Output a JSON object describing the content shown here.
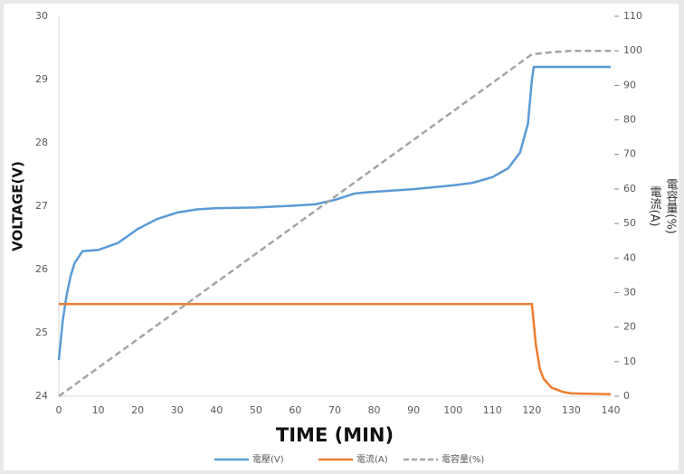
{
  "chart_data": {
    "type": "line",
    "xlabel": "TIME (MIN)",
    "ylabel": "VOLTAGE(V)",
    "y2label": [
      "電流(A)",
      "電容量(%)"
    ],
    "xlim": [
      0,
      140
    ],
    "xticks": [
      0,
      10,
      20,
      30,
      40,
      50,
      60,
      70,
      80,
      90,
      100,
      110,
      120,
      130,
      140
    ],
    "ylim": [
      24,
      30
    ],
    "yticks": [
      24,
      25,
      26,
      27,
      28,
      29,
      30
    ],
    "y2lim": [
      0,
      110
    ],
    "y2ticks": [
      0,
      10,
      20,
      30,
      40,
      50,
      60,
      70,
      80,
      90,
      100,
      110
    ],
    "series": [
      {
        "name": "電壓(V)",
        "color": "#5b9bd5",
        "dashed": false,
        "x": [
          0,
          1,
          2,
          3,
          4,
          6,
          10,
          15,
          20,
          25,
          30,
          35,
          40,
          50,
          60,
          65,
          70,
          75,
          78,
          90,
          100,
          105,
          110,
          114,
          117,
          119,
          120,
          120.5,
          140
        ],
        "values": [
          24.57,
          25.2,
          25.6,
          25.9,
          26.1,
          26.29,
          26.31,
          26.42,
          26.64,
          26.8,
          26.9,
          26.95,
          26.97,
          26.98,
          27.01,
          27.03,
          27.1,
          27.2,
          27.22,
          27.27,
          27.33,
          27.37,
          27.46,
          27.6,
          27.85,
          28.3,
          29.0,
          29.2,
          29.2
        ]
      },
      {
        "name": "電流(A)",
        "color": "#ed7d31",
        "dashed": false,
        "axis": "y2",
        "x": [
          0,
          120,
          121,
          122,
          123,
          125,
          128,
          130,
          140
        ],
        "values": [
          26.7,
          26.7,
          15,
          8,
          5,
          2.5,
          1.2,
          0.8,
          0.6
        ]
      },
      {
        "name": "電容量(%)",
        "color": "#a5a5a5",
        "dashed": true,
        "axis": "y2",
        "x": [
          0,
          120,
          125,
          130,
          140
        ],
        "values": [
          0,
          99,
          99.6,
          100,
          100
        ]
      }
    ]
  }
}
